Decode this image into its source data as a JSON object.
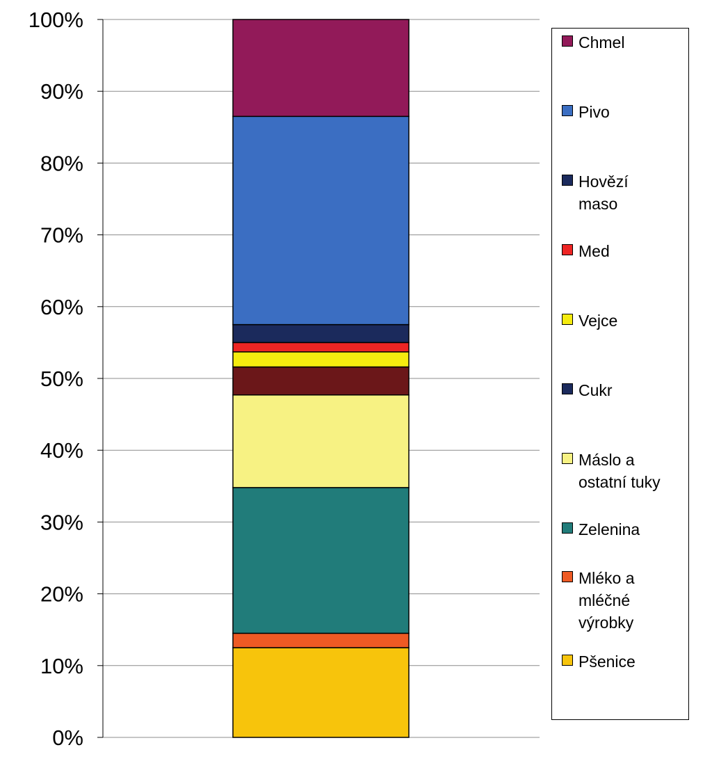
{
  "chart_data": {
    "type": "bar",
    "stacked": true,
    "percent": true,
    "categories": [
      ""
    ],
    "yticks": [
      "0%",
      "10%",
      "20%",
      "30%",
      "40%",
      "50%",
      "60%",
      "70%",
      "80%",
      "90%",
      "100%"
    ],
    "ylim": [
      0,
      100
    ],
    "grid": true,
    "legend_position": "right",
    "series": [
      {
        "name": "Pšenice",
        "values": [
          12.5
        ],
        "color": "#F7C40C"
      },
      {
        "name": "Mléko a mléčné výrobky",
        "values": [
          2.0
        ],
        "color": "#EE5A24"
      },
      {
        "name": "Zelenina",
        "values": [
          20.3
        ],
        "color": "#217C7A"
      },
      {
        "name": "Máslo a ostatní tuky",
        "values": [
          12.9
        ],
        "color": "#F7F283"
      },
      {
        "name": "Cukr",
        "values": [
          3.9
        ],
        "color": "#6B1719",
        "legend_color": "#1B2A5C"
      },
      {
        "name": "Vejce",
        "values": [
          2.1
        ],
        "color": "#F5EB0F"
      },
      {
        "name": "Med",
        "values": [
          1.3
        ],
        "color": "#EE2524"
      },
      {
        "name": "Hovězí maso",
        "values": [
          2.5
        ],
        "color": "#1B2A5C"
      },
      {
        "name": "Pivo",
        "values": [
          29.0
        ],
        "color": "#3B6EC2"
      },
      {
        "name": "Chmel",
        "values": [
          13.5
        ],
        "color": "#921A59"
      }
    ]
  },
  "legend": [
    {
      "lines": [
        "Chmel"
      ],
      "color": "#921A59"
    },
    {
      "lines": [
        "Pivo"
      ],
      "color": "#3B6EC2"
    },
    {
      "lines": [
        "Hovězí",
        "maso"
      ],
      "color": "#1B2A5C"
    },
    {
      "lines": [
        "Med"
      ],
      "color": "#EE2524"
    },
    {
      "lines": [
        "Vejce"
      ],
      "color": "#F5EB0F"
    },
    {
      "lines": [
        "Cukr"
      ],
      "color": "#1B2A5C"
    },
    {
      "lines": [
        "Máslo a",
        "ostatní tuky"
      ],
      "color": "#F7F283"
    },
    {
      "lines": [
        "Zelenina"
      ],
      "color": "#217C7A"
    },
    {
      "lines": [
        "Mléko a",
        "mléčné",
        "výrobky"
      ],
      "color": "#EE5A24"
    },
    {
      "lines": [
        "Pšenice"
      ],
      "color": "#F7C40C"
    }
  ]
}
